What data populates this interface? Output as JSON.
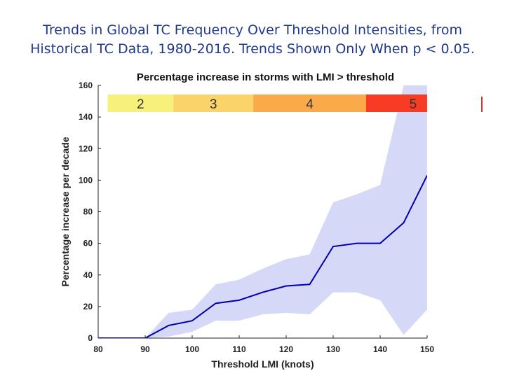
{
  "slide": {
    "title_line1": "Trends in Global TC Frequency Over Threshold Intensities, from",
    "title_line2": "Historical TC Data, 1980-2016. Trends Shown Only When p < 0.05."
  },
  "chart_data": {
    "type": "line",
    "title": "Percentage increase in storms with LMI > threshold",
    "xlabel": "Threshold LMI (knots)",
    "ylabel": "Percentage increase per decade",
    "xlim": [
      80,
      150
    ],
    "ylim": [
      0,
      160
    ],
    "xticks": [
      80,
      90,
      100,
      110,
      120,
      130,
      140,
      150
    ],
    "yticks": [
      0,
      20,
      40,
      60,
      80,
      100,
      120,
      140,
      160
    ],
    "grid": false,
    "colors": {
      "line": "#0000aa",
      "band": "#d6d8f7"
    },
    "x": [
      80,
      85,
      90,
      95,
      100,
      105,
      110,
      115,
      120,
      125,
      130,
      135,
      140,
      145,
      150
    ],
    "series": [
      {
        "values": [
          0,
          0,
          0,
          8,
          11,
          22,
          24,
          29,
          33,
          34,
          58,
          60,
          60,
          73,
          103
        ]
      }
    ],
    "band": {
      "lower": [
        0,
        0,
        0,
        1,
        4,
        11,
        11,
        15,
        16,
        15,
        29,
        29,
        24,
        2,
        18
      ],
      "upper": [
        0,
        0,
        0,
        16,
        18,
        34,
        37,
        44,
        50,
        53,
        86,
        91,
        97,
        160,
        160
      ]
    },
    "categories_bar": [
      {
        "label": "2",
        "color": "#f7f07a",
        "from": 82,
        "to": 96
      },
      {
        "label": "3",
        "color": "#fbd36b",
        "from": 96,
        "to": 113
      },
      {
        "label": "4",
        "color": "#fbaa4b",
        "from": 113,
        "to": 137
      },
      {
        "label": "5",
        "color": "#f73b24",
        "from": 137,
        "to": 157
      }
    ]
  }
}
